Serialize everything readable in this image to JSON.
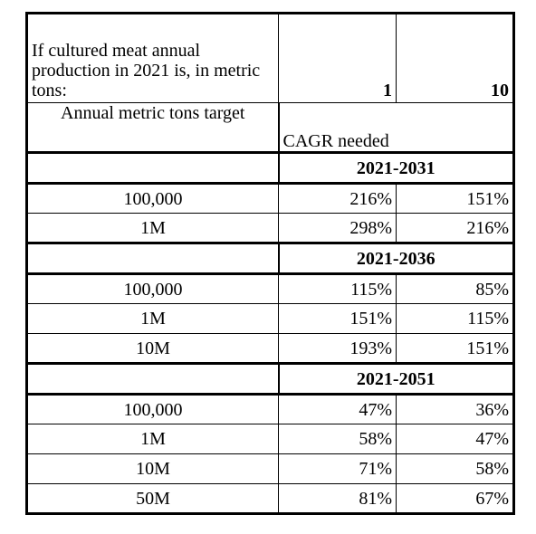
{
  "header": {
    "question": "If cultured meat annual production in 2021 is, in metric tons:",
    "columns": [
      "1",
      "10"
    ]
  },
  "subheader": {
    "label": "Annual metric tons target",
    "note": "CAGR needed"
  },
  "sections": [
    {
      "period": "2021-2031",
      "rows": [
        [
          "100,000",
          "216%",
          "151%"
        ],
        [
          "1M",
          "298%",
          "216%"
        ]
      ]
    },
    {
      "period": "2021-2036",
      "rows": [
        [
          "100,000",
          "115%",
          "85%"
        ],
        [
          "1M",
          "151%",
          "115%"
        ],
        [
          "10M",
          "193%",
          "151%"
        ]
      ]
    },
    {
      "period": "2021-2051",
      "rows": [
        [
          "100,000",
          "47%",
          "36%"
        ],
        [
          "1M",
          "58%",
          "47%"
        ],
        [
          "10M",
          "71%",
          "58%"
        ],
        [
          "50M",
          "81%",
          "67%"
        ]
      ]
    }
  ]
}
